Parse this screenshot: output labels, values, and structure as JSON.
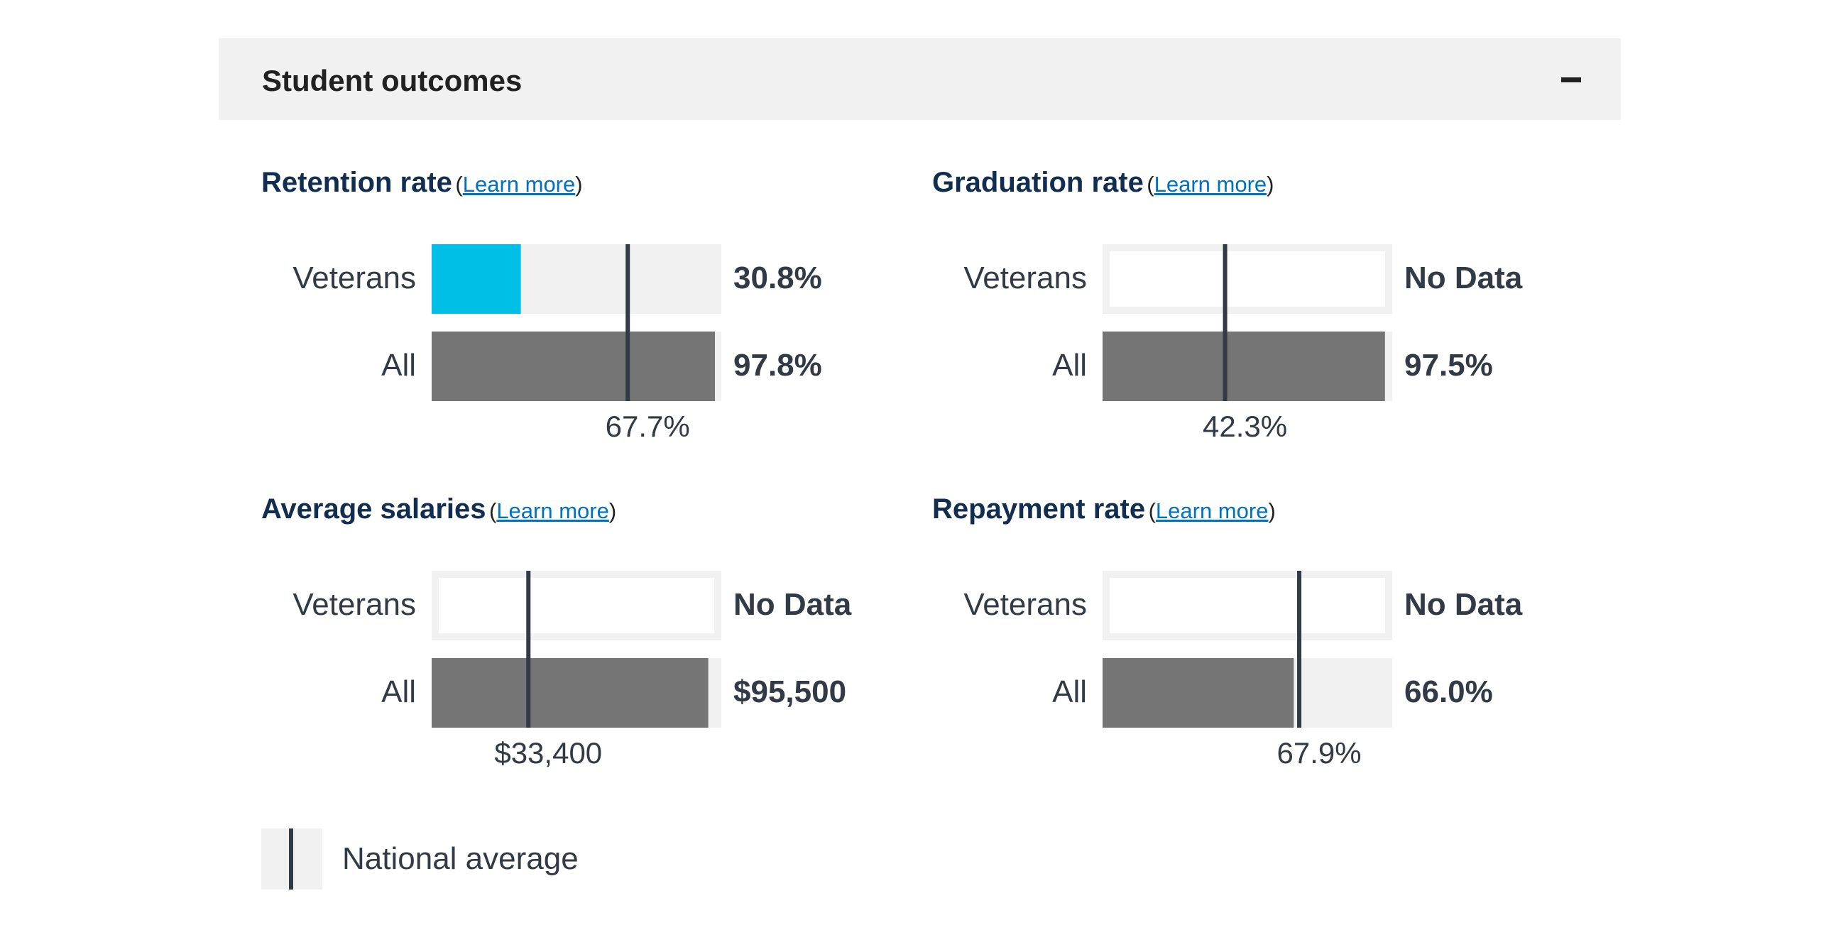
{
  "accordion": {
    "title": "Student outcomes"
  },
  "learn_more_text": "Learn more",
  "colors": {
    "veteran_bar": "#00bfe7",
    "all_bar": "#757575",
    "track": "#f1f1f1",
    "average_line": "#323a45",
    "title": "#112e51"
  },
  "legend": {
    "label": "National average"
  },
  "chart_data": [
    {
      "type": "bar",
      "title": "Retention rate",
      "unit": "%",
      "max": 100,
      "series": [
        {
          "name": "Veterans",
          "value": 30.8,
          "label": "30.8%"
        },
        {
          "name": "All",
          "value": 97.8,
          "label": "97.8%"
        }
      ],
      "national_average": {
        "value": 67.7,
        "label": "67.7%"
      }
    },
    {
      "type": "bar",
      "title": "Graduation rate",
      "unit": "%",
      "max": 100,
      "series": [
        {
          "name": "Veterans",
          "value": null,
          "label": "No Data"
        },
        {
          "name": "All",
          "value": 97.5,
          "label": "97.5%"
        }
      ],
      "national_average": {
        "value": 42.3,
        "label": "42.3%"
      }
    },
    {
      "type": "bar",
      "title": "Average salaries",
      "unit": "$",
      "max": 100000,
      "series": [
        {
          "name": "Veterans",
          "value": null,
          "label": "No Data"
        },
        {
          "name": "All",
          "value": 95500,
          "label": "$95,500"
        }
      ],
      "national_average": {
        "value": 33400,
        "label": "$33,400"
      }
    },
    {
      "type": "bar",
      "title": "Repayment rate",
      "unit": "%",
      "max": 100,
      "series": [
        {
          "name": "Veterans",
          "value": null,
          "label": "No Data"
        },
        {
          "name": "All",
          "value": 66.0,
          "label": "66.0%"
        }
      ],
      "national_average": {
        "value": 67.9,
        "label": "67.9%"
      }
    }
  ]
}
